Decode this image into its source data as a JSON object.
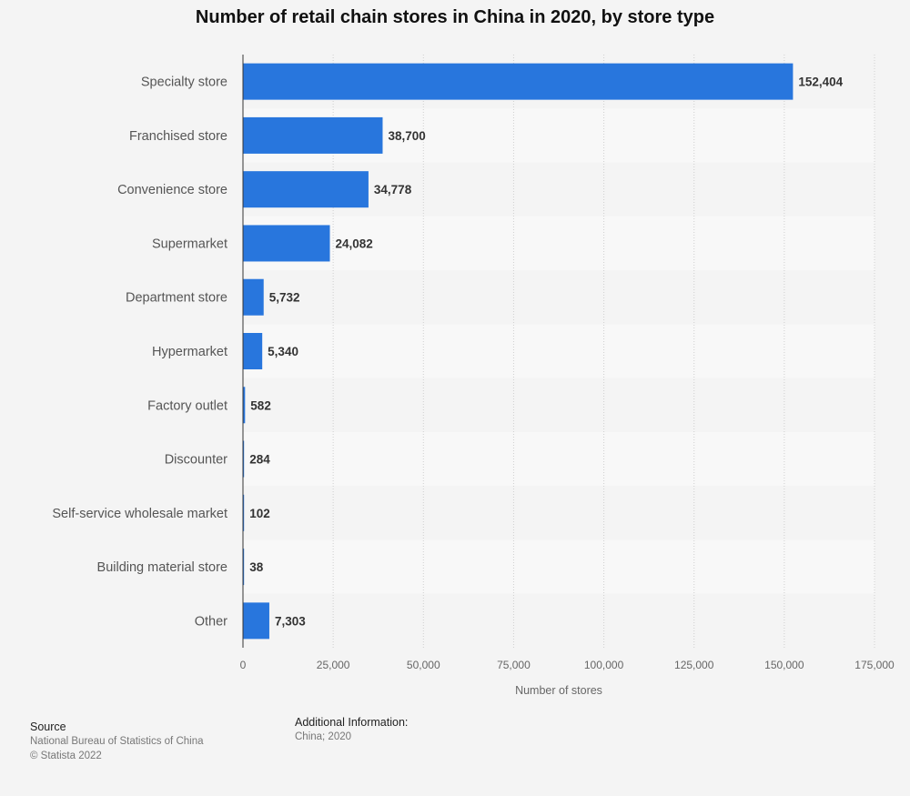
{
  "title": "Number of retail chain stores in China in 2020, by store type",
  "chart_data": {
    "type": "bar",
    "orientation": "horizontal",
    "categories": [
      "Specialty store",
      "Franchised store",
      "Convenience store",
      "Supermarket",
      "Department store",
      "Hypermarket",
      "Factory outlet",
      "Discounter",
      "Self-service wholesale market",
      "Building material store",
      "Other"
    ],
    "values": [
      152404,
      38700,
      34778,
      24082,
      5732,
      5340,
      582,
      284,
      102,
      38,
      7303
    ],
    "value_labels": [
      "152,404",
      "38,700",
      "34,778",
      "24,082",
      "5,732",
      "5,340",
      "582",
      "284",
      "102",
      "38",
      "7,303"
    ],
    "xlabel": "Number of stores",
    "xlim": [
      0,
      175000
    ],
    "x_ticks": [
      0,
      25000,
      50000,
      75000,
      100000,
      125000,
      150000,
      175000
    ],
    "x_tick_labels": [
      "0",
      "25,000",
      "50,000",
      "75,000",
      "100,000",
      "125,000",
      "150,000",
      "175,000"
    ],
    "bar_color": "#2876dd",
    "grid": true
  },
  "source": {
    "heading": "Source",
    "line1": "National Bureau of Statistics of China",
    "line2": "© Statista 2022"
  },
  "additional_info": {
    "heading": "Additional Information:",
    "text": "China; 2020"
  }
}
